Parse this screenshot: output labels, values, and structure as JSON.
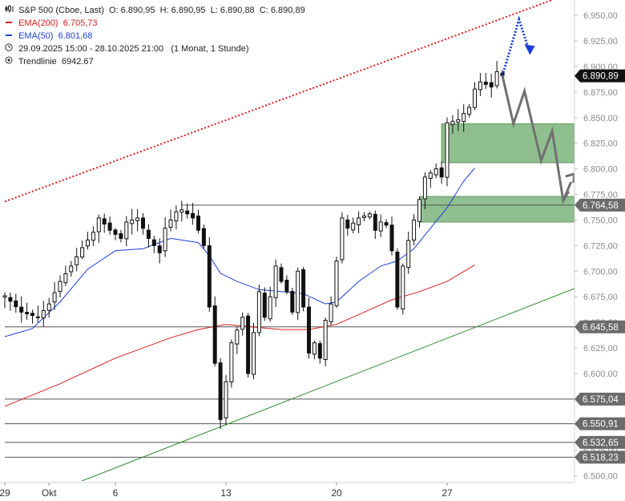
{
  "legend": {
    "symbol": "S&P 500 (Cboe, Last)",
    "ohlc": {
      "o": "O: 6.890,95",
      "h": "H: 6.890,95",
      "l": "L: 6.890,88",
      "c": "C: 6.890,89"
    },
    "ema200_label": "EMA(200)",
    "ema200_value": "6.705,73",
    "ema50_label": "EMA(50)",
    "ema50_value": "6.801,68",
    "range_text": "29.09.2025 15:00 - 28.10.2025 21:00",
    "interval_text": "(1 Monat, 1 Stunde)",
    "trend_label": "Trendlinie",
    "trend_value": "6942.67"
  },
  "colors": {
    "ema200": "#d91c1c",
    "ema50": "#1b3fd6",
    "trendline_upper": "#e01b1b",
    "trendline_lower": "#2e8b2e",
    "zone_fill": "#8fbf8f",
    "arrow_grey": "#707070",
    "arrow_blue": "#1b3fd6",
    "candle": "#111111",
    "level_label_bg": "#6b6b6b",
    "last_price_bg": "#111111"
  },
  "chart_data": {
    "type": "candlestick",
    "ylim": [
      6495,
      6965
    ],
    "y_ticks": [
      "6.500,00",
      "6.525,00",
      "6.550,00",
      "6.575,00",
      "6.600,00",
      "6.625,00",
      "6.650,00",
      "6.675,00",
      "6.700,00",
      "6.725,00",
      "6.750,00",
      "6.775,00",
      "6.800,00",
      "6.825,00",
      "6.850,00",
      "6.875,00",
      "6.900,00",
      "6.925,00",
      "6.950,00"
    ],
    "y_tick_values": [
      6500,
      6525,
      6550,
      6575,
      6600,
      6625,
      6650,
      6675,
      6700,
      6725,
      6750,
      6775,
      6800,
      6825,
      6850,
      6875,
      6900,
      6925,
      6950
    ],
    "x_ticks": [
      "29",
      "Okt",
      "6",
      "13",
      "20",
      "27"
    ],
    "x_tick_index": [
      0,
      8,
      20,
      40,
      60,
      80
    ],
    "close_path": [
      [
        0,
        6676
      ],
      [
        3,
        6660
      ],
      [
        6,
        6655
      ],
      [
        8,
        6668
      ],
      [
        10,
        6690
      ],
      [
        12,
        6705
      ],
      [
        14,
        6723
      ],
      [
        16,
        6738
      ],
      [
        17,
        6752
      ],
      [
        19,
        6740
      ],
      [
        21,
        6732
      ],
      [
        22,
        6748
      ],
      [
        24,
        6752
      ],
      [
        26,
        6732
      ],
      [
        28,
        6718
      ],
      [
        29,
        6742
      ],
      [
        31,
        6758
      ],
      [
        32,
        6760
      ],
      [
        34,
        6752
      ],
      [
        35,
        6740
      ],
      [
        36,
        6725
      ],
      [
        37,
        6665
      ],
      [
        38,
        6610
      ],
      [
        39,
        6555
      ],
      [
        40,
        6592
      ],
      [
        41,
        6630
      ],
      [
        43,
        6655
      ],
      [
        44,
        6600
      ],
      [
        45,
        6640
      ],
      [
        46,
        6680
      ],
      [
        47,
        6655
      ],
      [
        48,
        6675
      ],
      [
        49,
        6705
      ],
      [
        50,
        6690
      ],
      [
        51,
        6680
      ],
      [
        52,
        6660
      ],
      [
        53,
        6700
      ],
      [
        54,
        6665
      ],
      [
        55,
        6620
      ],
      [
        56,
        6630
      ],
      [
        57,
        6615
      ],
      [
        58,
        6652
      ],
      [
        59,
        6668
      ],
      [
        60,
        6710
      ],
      [
        61,
        6752
      ],
      [
        62,
        6742
      ],
      [
        64,
        6752
      ],
      [
        66,
        6756
      ],
      [
        67,
        6740
      ],
      [
        68,
        6748
      ],
      [
        69,
        6745
      ],
      [
        70,
        6720
      ],
      [
        71,
        6665
      ],
      [
        72,
        6705
      ],
      [
        73,
        6730
      ],
      [
        74,
        6750
      ],
      [
        75,
        6770
      ],
      [
        76,
        6792
      ],
      [
        78,
        6800
      ],
      [
        79,
        6792
      ],
      [
        80,
        6845
      ],
      [
        82,
        6848
      ],
      [
        84,
        6860
      ],
      [
        85,
        6878
      ],
      [
        86,
        6885
      ],
      [
        88,
        6880
      ],
      [
        89,
        6895
      ],
      [
        90,
        6891
      ]
    ],
    "ema50_path": [
      [
        0,
        6636
      ],
      [
        5,
        6644
      ],
      [
        10,
        6670
      ],
      [
        15,
        6702
      ],
      [
        20,
        6720
      ],
      [
        25,
        6722
      ],
      [
        30,
        6732
      ],
      [
        35,
        6728
      ],
      [
        37,
        6715
      ],
      [
        39,
        6698
      ],
      [
        42,
        6690
      ],
      [
        46,
        6682
      ],
      [
        50,
        6680
      ],
      [
        54,
        6678
      ],
      [
        58,
        6668
      ],
      [
        60,
        6670
      ],
      [
        64,
        6690
      ],
      [
        68,
        6705
      ],
      [
        71,
        6710
      ],
      [
        74,
        6722
      ],
      [
        77,
        6742
      ],
      [
        80,
        6762
      ],
      [
        83,
        6788
      ],
      [
        85,
        6801
      ]
    ],
    "ema200_path": [
      [
        0,
        6568
      ],
      [
        10,
        6590
      ],
      [
        20,
        6615
      ],
      [
        30,
        6635
      ],
      [
        35,
        6643
      ],
      [
        40,
        6648
      ],
      [
        50,
        6643
      ],
      [
        55,
        6643
      ],
      [
        60,
        6648
      ],
      [
        65,
        6660
      ],
      [
        70,
        6672
      ],
      [
        75,
        6680
      ],
      [
        80,
        6690
      ],
      [
        85,
        6706
      ]
    ],
    "trendline_upper": {
      "from": [
        0,
        6768
      ],
      "to": [
        99,
        6965
      ]
    },
    "trendline_lower": {
      "from": [
        13,
        6493
      ],
      "to": [
        103,
        6683
      ]
    },
    "zones": [
      {
        "x_start": 75,
        "x_end": 103,
        "top": 6773,
        "bottom": 6748
      },
      {
        "x_start": 79,
        "x_end": 103,
        "top": 6844,
        "bottom": 6806
      }
    ],
    "horizontal_levels": [
      {
        "value": 6764.58,
        "label": "6.764,58",
        "x_start": 32
      },
      {
        "value": 6645.58,
        "label": "6.645,58",
        "x_start": 0
      },
      {
        "value": 6575.04,
        "label": "6.575,04",
        "x_start": 0
      },
      {
        "value": 6550.91,
        "label": "6.550,91",
        "x_start": 0
      },
      {
        "value": 6532.65,
        "label": "6.532,65",
        "x_start": 0
      },
      {
        "value": 6518.23,
        "label": "6.518,23",
        "x_start": 0
      }
    ],
    "last_price": {
      "value": 6890.89,
      "label": "6.890,89"
    },
    "projection_grey": [
      [
        90,
        6891
      ],
      [
        92,
        6844
      ],
      [
        94,
        6876
      ],
      [
        97,
        6808
      ],
      [
        99,
        6837
      ],
      [
        101,
        6769
      ],
      [
        102,
        6778
      ],
      [
        103,
        6795
      ]
    ],
    "projection_blue": [
      [
        90,
        6891
      ],
      [
        93,
        6946
      ],
      [
        95,
        6913
      ]
    ]
  }
}
